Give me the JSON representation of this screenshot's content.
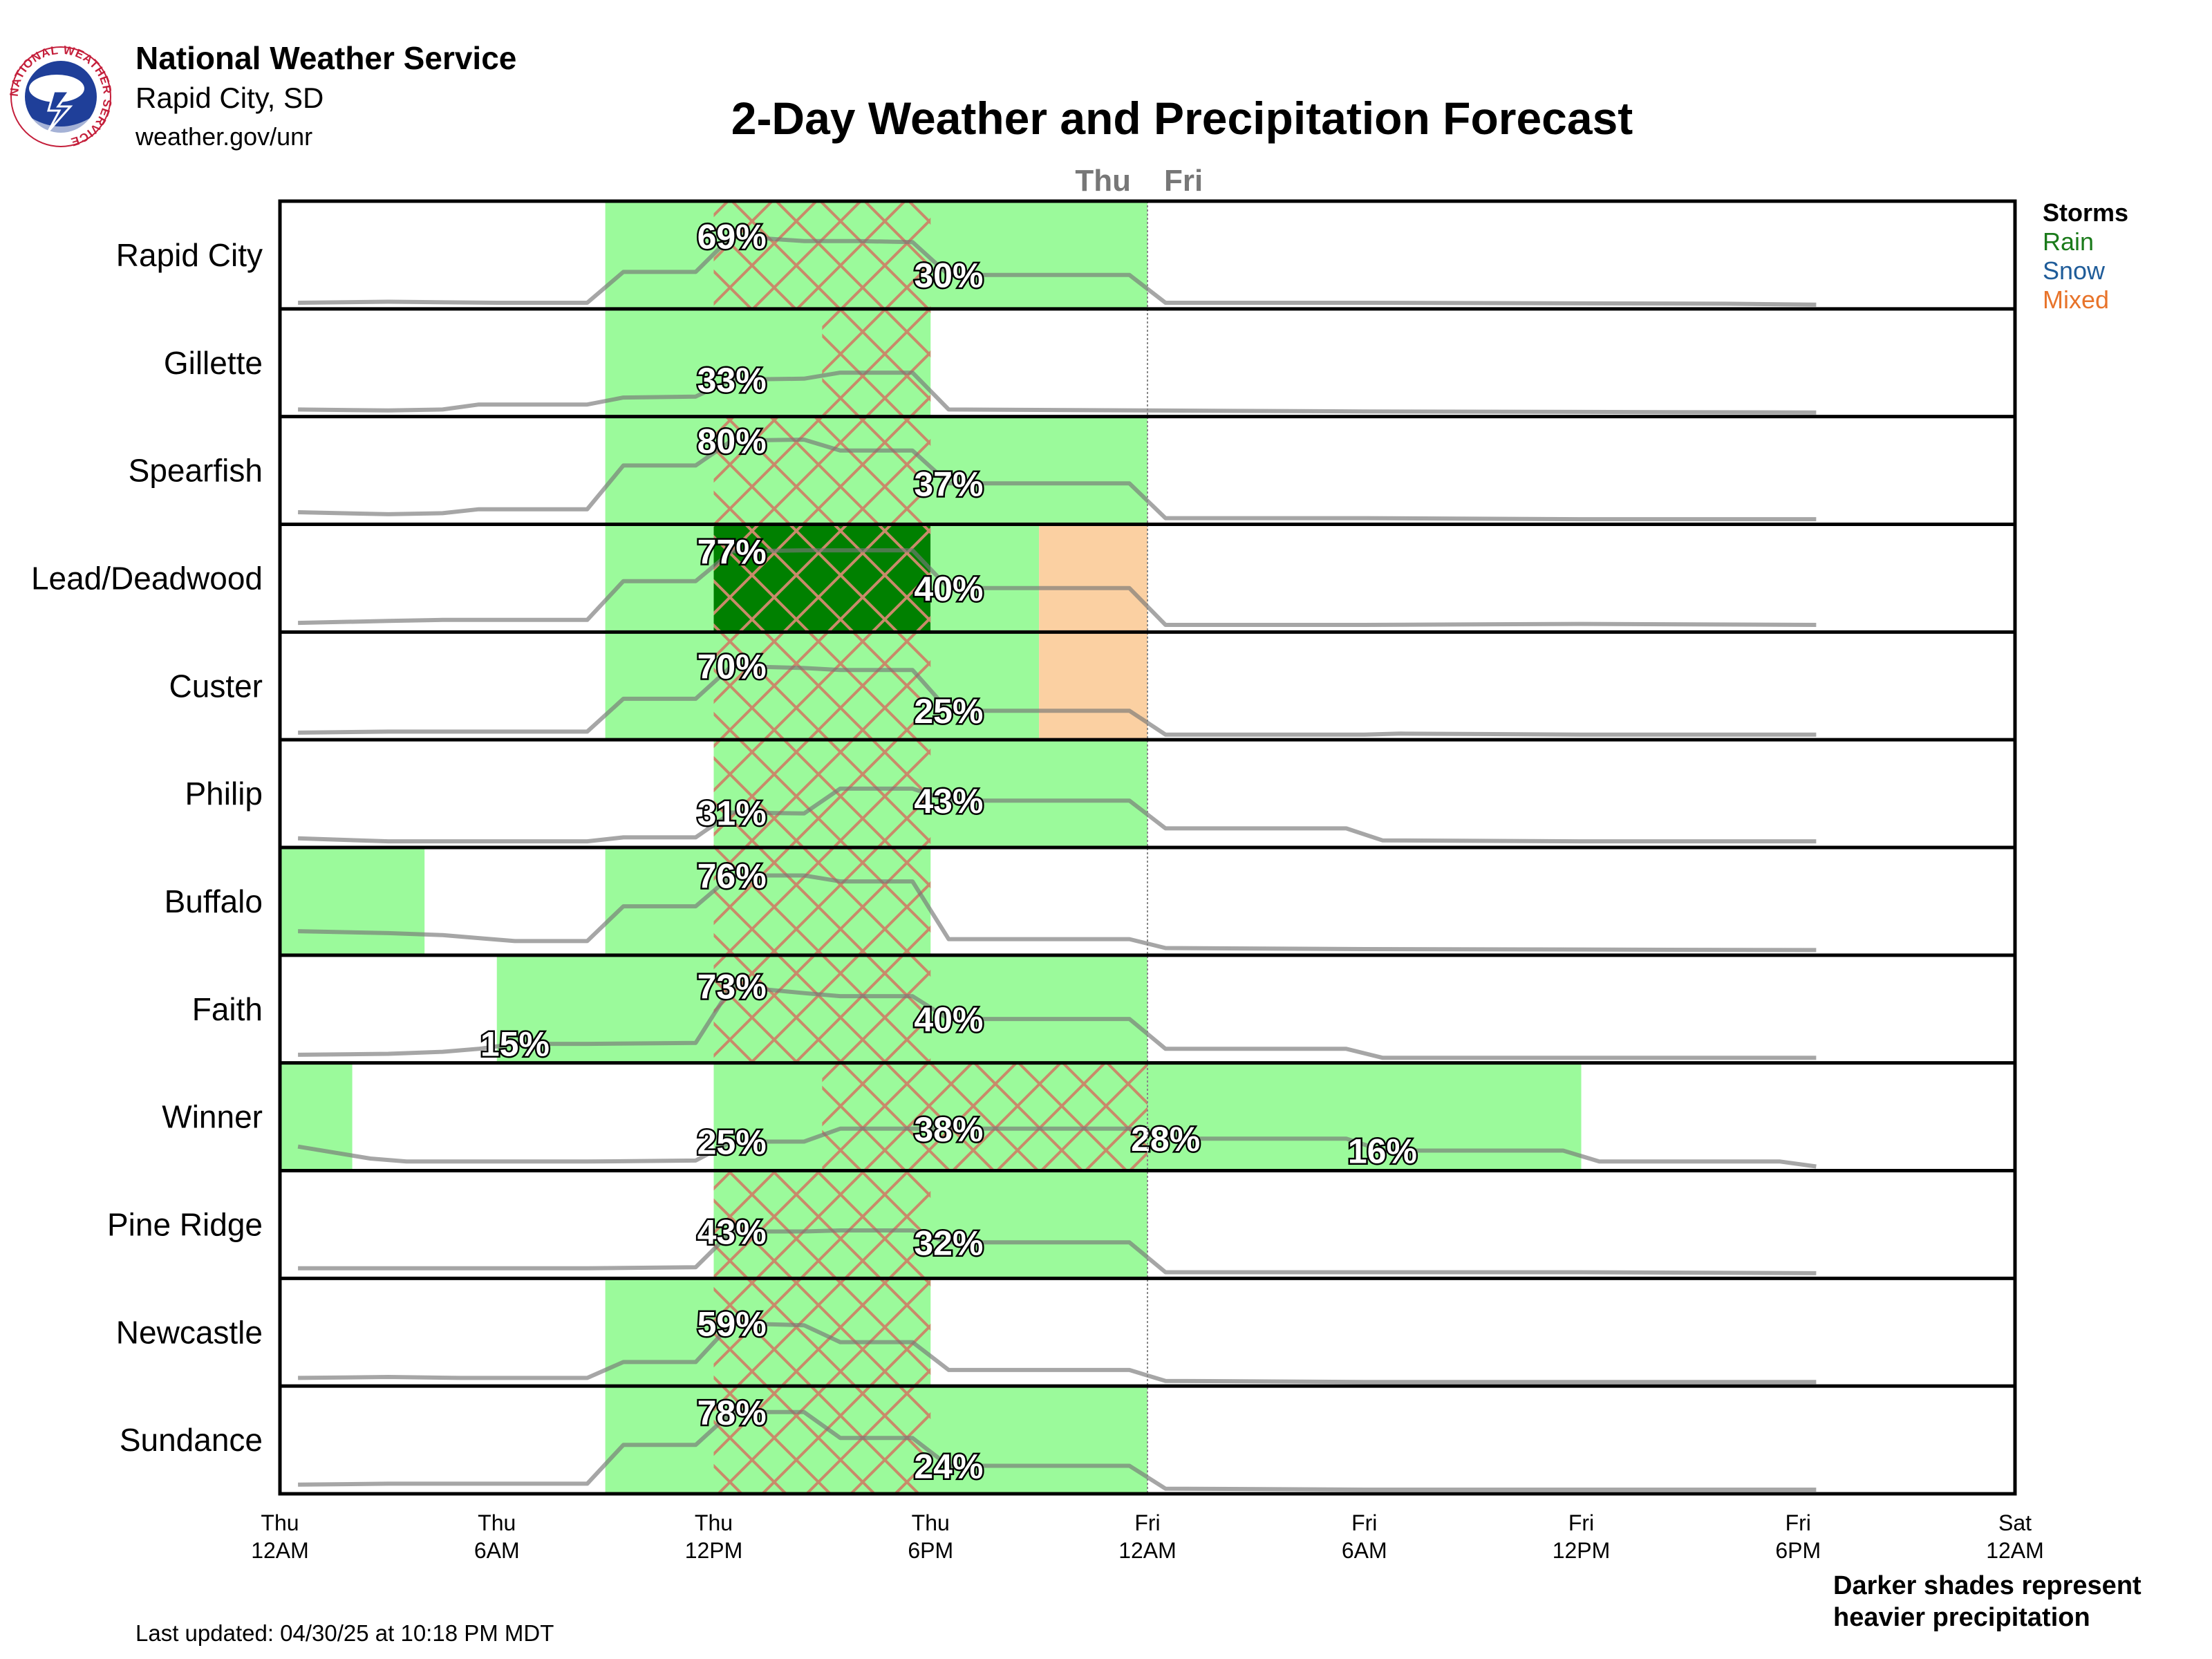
{
  "header": {
    "org": "National Weather Service",
    "office": "Rapid City, SD",
    "url": "weather.gov/unr",
    "title": "2-Day Weather and Precipitation Forecast",
    "logo_text": "NATIONAL WEATHER SERVICE"
  },
  "footer": {
    "updated": "Last updated: 04/30/25 at 10:18 PM MDT",
    "note_line1": "Darker shades represent",
    "note_line2": "heavier precipitation"
  },
  "colors": {
    "rain_light": "#9bfa9b",
    "rain_heavy": "#008000",
    "mixed": "#fbd0a2",
    "storm_hatch": "#c98a6a",
    "pop_line": "#777777",
    "rain_legend": "#1a7a1a",
    "snow_legend": "#1f5c99",
    "mixed_legend": "#e8742b"
  },
  "chart_data": {
    "type": "table",
    "title": "2-Day Weather and Precipitation Forecast",
    "x_unit": "hours from Thu 12AM",
    "xlim": [
      0,
      48
    ],
    "day_marks": [
      {
        "label": "Thu",
        "x": 24,
        "side": "left"
      },
      {
        "label": "Fri",
        "x": 24,
        "side": "right"
      }
    ],
    "x_ticks": [
      {
        "x": 0,
        "line1": "Thu",
        "line2": "12AM"
      },
      {
        "x": 6,
        "line1": "Thu",
        "line2": "6AM"
      },
      {
        "x": 12,
        "line1": "Thu",
        "line2": "12PM"
      },
      {
        "x": 18,
        "line1": "Thu",
        "line2": "6PM"
      },
      {
        "x": 24,
        "line1": "Fri",
        "line2": "12AM"
      },
      {
        "x": 30,
        "line1": "Fri",
        "line2": "6AM"
      },
      {
        "x": 36,
        "line1": "Fri",
        "line2": "12PM"
      },
      {
        "x": 42,
        "line1": "Fri",
        "line2": "6PM"
      },
      {
        "x": 48,
        "line1": "Sat",
        "line2": "12AM"
      }
    ],
    "legend": [
      "Storms",
      "Rain",
      "Snow",
      "Mixed"
    ],
    "legend_placement": "right",
    "rows": [
      {
        "name": "Rapid City",
        "blocks": [
          {
            "t0": 9,
            "t1": 24,
            "kind": "rain"
          }
        ],
        "storms": [
          [
            12,
            18
          ]
        ],
        "pop": [
          [
            0.5,
            0.02
          ],
          [
            3,
            0.03
          ],
          [
            6,
            0.02
          ],
          [
            8.5,
            0.02
          ],
          [
            9.5,
            0.33
          ],
          [
            11.5,
            0.33
          ],
          [
            12.5,
            0.69
          ],
          [
            14.5,
            0.64
          ],
          [
            16,
            0.64
          ],
          [
            17.5,
            0.63
          ],
          [
            18.5,
            0.3
          ],
          [
            23.5,
            0.3
          ],
          [
            24.5,
            0.02
          ],
          [
            30,
            0.02
          ],
          [
            40,
            0.01
          ],
          [
            42.5,
            0.0
          ]
        ],
        "labels": [
          {
            "x": 12.5,
            "v": 0.69,
            "text": "69%"
          },
          {
            "x": 18.5,
            "v": 0.3,
            "text": "30%"
          }
        ]
      },
      {
        "name": "Gillette",
        "blocks": [
          {
            "t0": 9,
            "t1": 18,
            "kind": "rain"
          }
        ],
        "storms": [
          [
            15,
            18
          ]
        ],
        "pop": [
          [
            0.5,
            0.03
          ],
          [
            3,
            0.02
          ],
          [
            4.5,
            0.03
          ],
          [
            5.5,
            0.08
          ],
          [
            8.5,
            0.08
          ],
          [
            9.5,
            0.15
          ],
          [
            11.5,
            0.16
          ],
          [
            12.5,
            0.33
          ],
          [
            14.5,
            0.34
          ],
          [
            15.5,
            0.4
          ],
          [
            17.5,
            0.4
          ],
          [
            18.5,
            0.03
          ],
          [
            24,
            0.02
          ],
          [
            30,
            0.01
          ],
          [
            42.5,
            0.0
          ]
        ],
        "labels": [
          {
            "x": 12.5,
            "v": 0.33,
            "text": "33%"
          }
        ]
      },
      {
        "name": "Spearfish",
        "blocks": [
          {
            "t0": 9,
            "t1": 24,
            "kind": "rain"
          }
        ],
        "storms": [
          [
            12,
            18
          ]
        ],
        "pop": [
          [
            0.5,
            0.08
          ],
          [
            3,
            0.06
          ],
          [
            4.5,
            0.07
          ],
          [
            5.5,
            0.11
          ],
          [
            8.5,
            0.11
          ],
          [
            9.5,
            0.55
          ],
          [
            11.5,
            0.55
          ],
          [
            12.5,
            0.8
          ],
          [
            14.5,
            0.81
          ],
          [
            15.5,
            0.7
          ],
          [
            17.5,
            0.7
          ],
          [
            18.5,
            0.37
          ],
          [
            23.5,
            0.37
          ],
          [
            24.5,
            0.02
          ],
          [
            30,
            0.02
          ],
          [
            36,
            0.01
          ],
          [
            42.5,
            0.01
          ]
        ],
        "labels": [
          {
            "x": 12.5,
            "v": 0.8,
            "text": "80%"
          },
          {
            "x": 18.5,
            "v": 0.37,
            "text": "37%"
          }
        ]
      },
      {
        "name": "Lead/Deadwood",
        "blocks": [
          {
            "t0": 9,
            "t1": 12,
            "kind": "rain"
          },
          {
            "t0": 12,
            "t1": 18,
            "kind": "heavy"
          },
          {
            "t0": 18,
            "t1": 21,
            "kind": "rain"
          },
          {
            "t0": 21,
            "t1": 24,
            "kind": "mixed"
          }
        ],
        "storms": [
          [
            12,
            18
          ]
        ],
        "pop": [
          [
            0.5,
            0.05
          ],
          [
            3,
            0.07
          ],
          [
            4.5,
            0.08
          ],
          [
            8.5,
            0.08
          ],
          [
            9.5,
            0.47
          ],
          [
            11.5,
            0.47
          ],
          [
            12.5,
            0.77
          ],
          [
            14.5,
            0.78
          ],
          [
            17.5,
            0.78
          ],
          [
            18.5,
            0.4
          ],
          [
            23.5,
            0.4
          ],
          [
            24.5,
            0.03
          ],
          [
            30,
            0.03
          ],
          [
            36,
            0.04
          ],
          [
            42.5,
            0.03
          ]
        ],
        "labels": [
          {
            "x": 12.5,
            "v": 0.77,
            "text": "77%"
          },
          {
            "x": 18.5,
            "v": 0.4,
            "text": "40%"
          }
        ]
      },
      {
        "name": "Custer",
        "blocks": [
          {
            "t0": 9,
            "t1": 21,
            "kind": "rain"
          },
          {
            "t0": 21,
            "t1": 24,
            "kind": "mixed"
          }
        ],
        "storms": [
          [
            12,
            18
          ]
        ],
        "pop": [
          [
            0.5,
            0.03
          ],
          [
            3,
            0.04
          ],
          [
            8.5,
            0.04
          ],
          [
            9.5,
            0.37
          ],
          [
            11.5,
            0.37
          ],
          [
            12.5,
            0.7
          ],
          [
            14.5,
            0.68
          ],
          [
            15.5,
            0.66
          ],
          [
            17.5,
            0.66
          ],
          [
            18.5,
            0.25
          ],
          [
            23.5,
            0.25
          ],
          [
            24.5,
            0.01
          ],
          [
            30,
            0.01
          ],
          [
            31,
            0.02
          ],
          [
            36,
            0.01
          ],
          [
            42.5,
            0.01
          ]
        ],
        "labels": [
          {
            "x": 12.5,
            "v": 0.7,
            "text": "70%"
          },
          {
            "x": 18.5,
            "v": 0.25,
            "text": "25%"
          }
        ]
      },
      {
        "name": "Philip",
        "blocks": [
          {
            "t0": 12,
            "t1": 24,
            "kind": "rain"
          }
        ],
        "storms": [
          [
            12,
            18
          ]
        ],
        "pop": [
          [
            0.5,
            0.05
          ],
          [
            3,
            0.02
          ],
          [
            8.5,
            0.02
          ],
          [
            9.5,
            0.06
          ],
          [
            11.5,
            0.06
          ],
          [
            12.5,
            0.31
          ],
          [
            14.5,
            0.3
          ],
          [
            15.5,
            0.55
          ],
          [
            17.5,
            0.55
          ],
          [
            18.5,
            0.43
          ],
          [
            23.5,
            0.43
          ],
          [
            24.5,
            0.15
          ],
          [
            29.5,
            0.15
          ],
          [
            30.5,
            0.03
          ],
          [
            36,
            0.02
          ],
          [
            42.5,
            0.02
          ]
        ],
        "labels": [
          {
            "x": 12.5,
            "v": 0.31,
            "text": "31%"
          },
          {
            "x": 18.5,
            "v": 0.43,
            "text": "43%"
          }
        ]
      },
      {
        "name": "Buffalo",
        "blocks": [
          {
            "t0": 0,
            "t1": 4,
            "kind": "rain"
          },
          {
            "t0": 9,
            "t1": 18,
            "kind": "rain"
          }
        ],
        "storms": [
          [
            12,
            18
          ]
        ],
        "pop": [
          [
            0.5,
            0.2
          ],
          [
            3,
            0.18
          ],
          [
            4.5,
            0.16
          ],
          [
            5.5,
            0.13
          ],
          [
            6.5,
            0.1
          ],
          [
            8.5,
            0.1
          ],
          [
            9.5,
            0.45
          ],
          [
            11.5,
            0.45
          ],
          [
            12.5,
            0.76
          ],
          [
            14.5,
            0.76
          ],
          [
            15.5,
            0.7
          ],
          [
            17.5,
            0.7
          ],
          [
            18.5,
            0.12
          ],
          [
            23.5,
            0.12
          ],
          [
            24.5,
            0.03
          ],
          [
            30,
            0.02
          ],
          [
            42.5,
            0.01
          ]
        ],
        "labels": [
          {
            "x": 12.5,
            "v": 0.76,
            "text": "76%"
          }
        ]
      },
      {
        "name": "Faith",
        "blocks": [
          {
            "t0": 6,
            "t1": 24,
            "kind": "rain"
          }
        ],
        "storms": [
          [
            12,
            18
          ]
        ],
        "pop": [
          [
            0.5,
            0.04
          ],
          [
            3,
            0.05
          ],
          [
            4.5,
            0.07
          ],
          [
            5.5,
            0.1
          ],
          [
            6.5,
            0.15
          ],
          [
            8.5,
            0.15
          ],
          [
            11.5,
            0.16
          ],
          [
            12.5,
            0.73
          ],
          [
            14.5,
            0.66
          ],
          [
            15.5,
            0.63
          ],
          [
            17.5,
            0.63
          ],
          [
            18.5,
            0.4
          ],
          [
            23.5,
            0.4
          ],
          [
            24.5,
            0.1
          ],
          [
            29.5,
            0.1
          ],
          [
            30.5,
            0.01
          ],
          [
            36,
            0.01
          ],
          [
            42.5,
            0.01
          ]
        ],
        "labels": [
          {
            "x": 12.5,
            "v": 0.73,
            "text": "73%"
          },
          {
            "x": 6.5,
            "v": 0.15,
            "text": "15%"
          },
          {
            "x": 18.5,
            "v": 0.4,
            "text": "40%"
          }
        ]
      },
      {
        "name": "Winner",
        "blocks": [
          {
            "t0": 0,
            "t1": 2,
            "kind": "rain"
          },
          {
            "t0": 12,
            "t1": 36,
            "kind": "rain"
          }
        ],
        "storms": [
          [
            15,
            24
          ]
        ],
        "pop": [
          [
            0.5,
            0.2
          ],
          [
            2.5,
            0.08
          ],
          [
            3.5,
            0.05
          ],
          [
            8.5,
            0.05
          ],
          [
            11.5,
            0.06
          ],
          [
            12.5,
            0.25
          ],
          [
            14.5,
            0.25
          ],
          [
            15.5,
            0.38
          ],
          [
            23.5,
            0.38
          ],
          [
            24.5,
            0.28
          ],
          [
            29.5,
            0.28
          ],
          [
            30.5,
            0.16
          ],
          [
            35.5,
            0.16
          ],
          [
            36.5,
            0.05
          ],
          [
            41.5,
            0.05
          ],
          [
            42.5,
            0.0
          ]
        ],
        "labels": [
          {
            "x": 12.5,
            "v": 0.25,
            "text": "25%"
          },
          {
            "x": 18.5,
            "v": 0.38,
            "text": "38%"
          },
          {
            "x": 24.5,
            "v": 0.28,
            "text": "28%"
          },
          {
            "x": 30.5,
            "v": 0.16,
            "text": "16%"
          }
        ]
      },
      {
        "name": "Pine Ridge",
        "blocks": [
          {
            "t0": 12,
            "t1": 24,
            "kind": "rain"
          }
        ],
        "storms": [
          [
            12,
            18
          ]
        ],
        "pop": [
          [
            0.5,
            0.06
          ],
          [
            8.5,
            0.06
          ],
          [
            11.5,
            0.07
          ],
          [
            12.5,
            0.43
          ],
          [
            14.5,
            0.43
          ],
          [
            15.5,
            0.44
          ],
          [
            17.5,
            0.44
          ],
          [
            18.5,
            0.32
          ],
          [
            23.5,
            0.32
          ],
          [
            24.5,
            0.02
          ],
          [
            30,
            0.02
          ],
          [
            36,
            0.02
          ],
          [
            42.5,
            0.01
          ]
        ],
        "labels": [
          {
            "x": 12.5,
            "v": 0.43,
            "text": "43%"
          },
          {
            "x": 18.5,
            "v": 0.32,
            "text": "32%"
          }
        ]
      },
      {
        "name": "Newcastle",
        "blocks": [
          {
            "t0": 9,
            "t1": 18,
            "kind": "rain"
          }
        ],
        "storms": [
          [
            12,
            18
          ]
        ],
        "pop": [
          [
            0.5,
            0.04
          ],
          [
            3,
            0.05
          ],
          [
            5,
            0.04
          ],
          [
            8.5,
            0.04
          ],
          [
            9.5,
            0.2
          ],
          [
            11.5,
            0.2
          ],
          [
            12.5,
            0.59
          ],
          [
            14.5,
            0.57
          ],
          [
            15.5,
            0.4
          ],
          [
            17.5,
            0.4
          ],
          [
            18.5,
            0.12
          ],
          [
            23.5,
            0.12
          ],
          [
            24.5,
            0.01
          ],
          [
            30,
            0.0
          ],
          [
            42.5,
            0.0
          ]
        ],
        "labels": [
          {
            "x": 12.5,
            "v": 0.59,
            "text": "59%"
          }
        ]
      },
      {
        "name": "Sundance",
        "blocks": [
          {
            "t0": 9,
            "t1": 24,
            "kind": "rain"
          }
        ],
        "storms": [
          [
            12,
            18
          ]
        ],
        "pop": [
          [
            0.5,
            0.05
          ],
          [
            3,
            0.06
          ],
          [
            8.5,
            0.06
          ],
          [
            9.5,
            0.45
          ],
          [
            11.5,
            0.45
          ],
          [
            12.5,
            0.78
          ],
          [
            14.5,
            0.78
          ],
          [
            15.5,
            0.52
          ],
          [
            17.5,
            0.52
          ],
          [
            18.5,
            0.24
          ],
          [
            23.5,
            0.24
          ],
          [
            24.5,
            0.01
          ],
          [
            30,
            0.0
          ],
          [
            42.5,
            0.0
          ]
        ],
        "labels": [
          {
            "x": 12.5,
            "v": 0.78,
            "text": "78%"
          },
          {
            "x": 18.5,
            "v": 0.24,
            "text": "24%"
          }
        ]
      }
    ]
  }
}
